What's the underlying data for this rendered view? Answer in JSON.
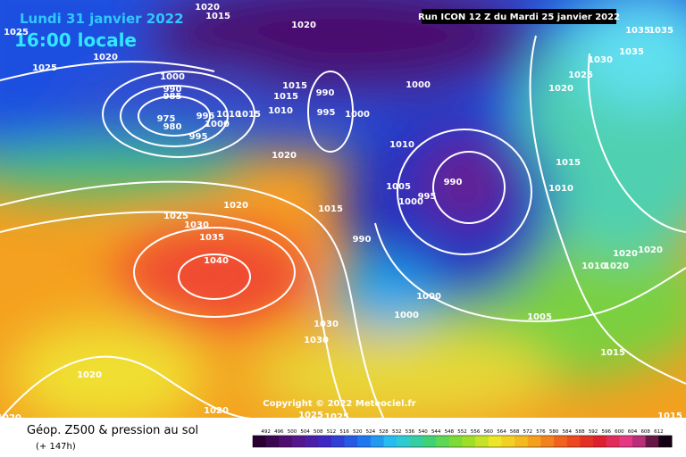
{
  "header": {
    "date": "Lundi 31 janvier 2022",
    "time": "16:00 locale",
    "run": "Run ICON 12 Z du Mardi 25 janvier 2022"
  },
  "copyright": "Copyright © 2022 Meteociel.fr",
  "footer": {
    "title": "Géop. Z500 & pression au sol",
    "subtitle": "(+ 147h)"
  },
  "scale": {
    "labels": [
      492,
      496,
      500,
      504,
      508,
      512,
      516,
      520,
      524,
      528,
      532,
      536,
      540,
      544,
      548,
      552,
      556,
      560,
      564,
      568,
      572,
      576,
      580,
      584,
      588,
      592,
      596,
      600,
      604,
      608,
      612
    ]
  },
  "isobar_labels": [
    1020,
    1015,
    1020,
    1025,
    1020,
    1025,
    1000,
    990,
    985,
    975,
    980,
    995,
    1010,
    1015,
    1000,
    995,
    1015,
    1015,
    1010,
    990,
    995,
    1000,
    1000,
    1010,
    1020,
    1005,
    995,
    990,
    1000,
    1015,
    990,
    1025,
    1030,
    1020,
    1035,
    1040,
    1000,
    1000,
    1030,
    1030,
    1020,
    1020,
    1020,
    1025,
    1025,
    1005,
    1015,
    1015,
    1035,
    1035,
    1025,
    1030,
    1035,
    1020,
    1015,
    1010,
    1020,
    1020,
    1010,
    1020
  ]
}
